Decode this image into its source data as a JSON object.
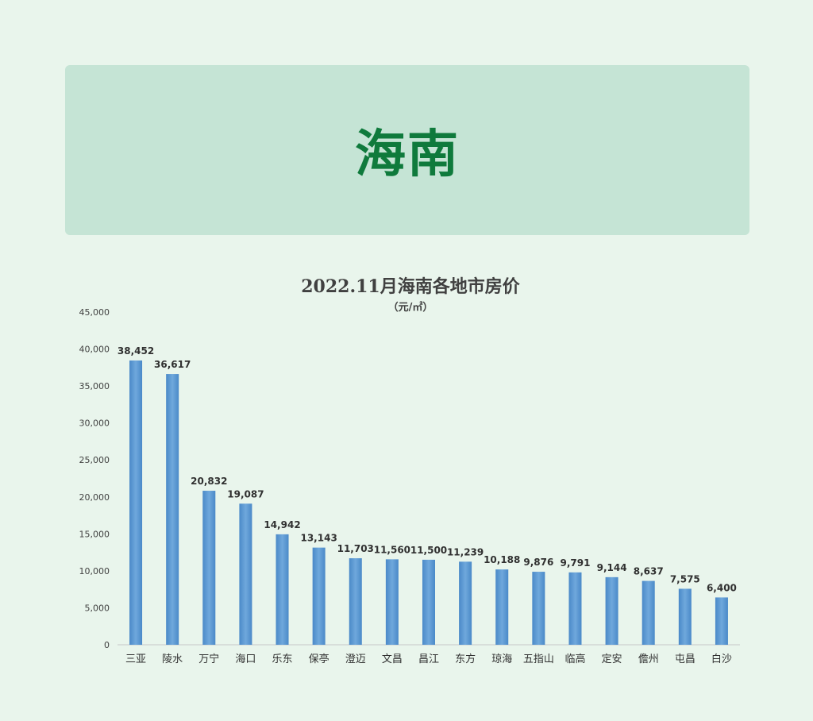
{
  "banner": {
    "title": "海南"
  },
  "chart_data": {
    "type": "bar",
    "title": "2022.11月海南各地市房价",
    "subtitle": "（元/㎡）",
    "categories": [
      "三亚",
      "陵水",
      "万宁",
      "海口",
      "乐东",
      "保亭",
      "澄迈",
      "文昌",
      "昌江",
      "东方",
      "琼海",
      "五指山",
      "临高",
      "定安",
      "儋州",
      "屯昌",
      "白沙"
    ],
    "values": [
      38452,
      36617,
      20832,
      19087,
      14942,
      13143,
      11703,
      11560,
      11500,
      11239,
      10188,
      9876,
      9791,
      9144,
      8637,
      7575,
      6400
    ],
    "data_labels": [
      "38,452",
      "36,617",
      "20,832",
      "19,087",
      "14,942",
      "13,143",
      "11,703",
      "11,560",
      "11,500",
      "11,239",
      "10,188",
      "9,876",
      "9,791",
      "9,144",
      "8,637",
      "7,575",
      "6,400"
    ],
    "ylim": [
      0,
      45000
    ],
    "yticks": [
      0,
      5000,
      10000,
      15000,
      20000,
      25000,
      30000,
      35000,
      40000,
      45000
    ],
    "ytick_labels": [
      "0",
      "5,000",
      "10,000",
      "15,000",
      "20,000",
      "25,000",
      "30,000",
      "35,000",
      "40,000",
      "45,000"
    ],
    "xlabel": "",
    "ylabel": "",
    "grid": false,
    "legend": "none",
    "bar_color": "#5b9bd5"
  }
}
